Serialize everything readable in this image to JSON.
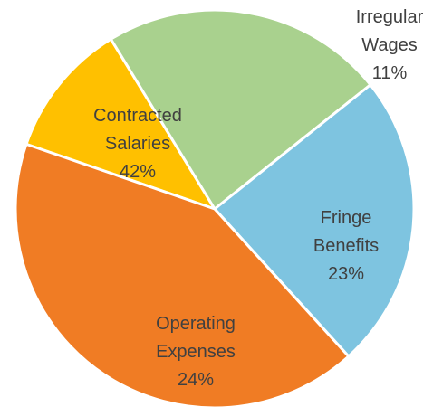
{
  "chart_data": {
    "type": "pie",
    "title": "",
    "slices": [
      {
        "label_lines": [
          "Irregular",
          "Wages"
        ],
        "value": 11,
        "value_label": "11%",
        "color": "#FFC000"
      },
      {
        "label_lines": [
          "Fringe",
          "Benefits"
        ],
        "value": 23,
        "value_label": "23%",
        "color": "#A9D18E"
      },
      {
        "label_lines": [
          "Operating",
          "Expenses"
        ],
        "value": 24,
        "value_label": "24%",
        "color": "#7EC4E0"
      },
      {
        "label_lines": [
          "Contracted",
          "Salaries"
        ],
        "value": 42,
        "value_label": "42%",
        "color": "#F07C24"
      }
    ],
    "legend": "none",
    "data_labels": "category-and-percent"
  }
}
